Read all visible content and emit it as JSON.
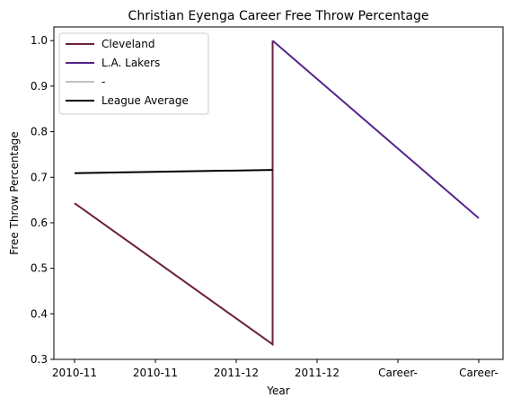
{
  "chart_data": {
    "type": "line",
    "title": "Christian Eyenga Career Free Throw Percentage",
    "xlabel": "Year",
    "ylabel": "Free Throw Percentage",
    "categories": [
      "2010-11",
      "2010-11",
      "2011-12",
      "2011-12",
      "Career-",
      "Career-"
    ],
    "ylim": [
      0.3,
      1.03
    ],
    "yticks": [
      0.3,
      0.4,
      0.5,
      0.6,
      0.7,
      0.8,
      0.9,
      1.0
    ],
    "ytick_labels": [
      "0.3",
      "0.4",
      "0.5",
      "0.6",
      "0.7",
      "0.8",
      "0.9",
      "1.0"
    ],
    "grid": false,
    "legend_position": "top-left",
    "series": [
      {
        "name": "Cleveland",
        "color": "#6b2040",
        "points": [
          {
            "x": 0,
            "y": 0.643
          },
          {
            "x": 2.45,
            "y": 0.333
          },
          {
            "x": 2.45,
            "y": 1.0
          }
        ]
      },
      {
        "name": "L.A. Lakers",
        "color": "#55248a",
        "points": [
          {
            "x": 2.45,
            "y": 1.0
          },
          {
            "x": 5,
            "y": 0.61
          }
        ]
      },
      {
        "name": "-",
        "color": "#c0c0c0",
        "points": []
      },
      {
        "name": "League Average",
        "color": "#000000",
        "points": [
          {
            "x": 0,
            "y": 0.709
          },
          {
            "x": 2.45,
            "y": 0.716
          }
        ]
      }
    ]
  }
}
